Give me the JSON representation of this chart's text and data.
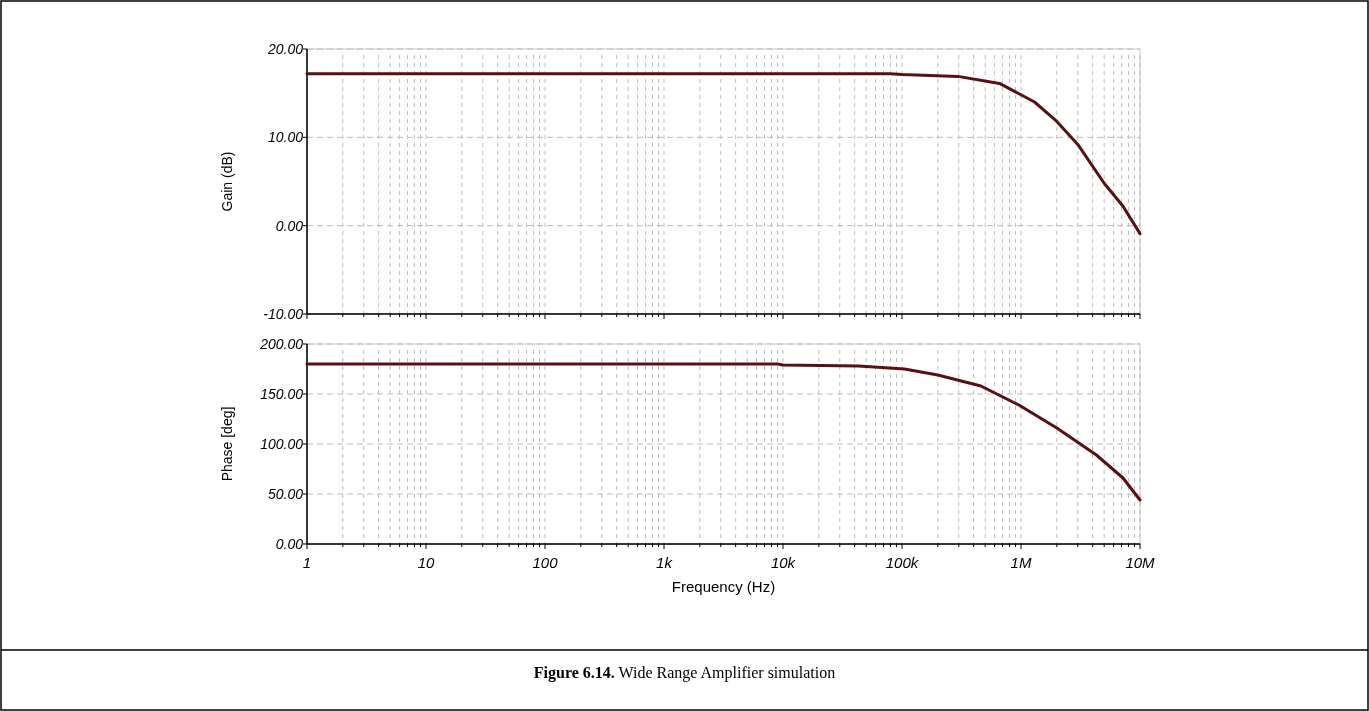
{
  "chart_data": [
    {
      "type": "line",
      "ylabel": "Gain (dB)",
      "log": "x",
      "grid": true,
      "tick_labels": "y",
      "marker": "none",
      "line_style": "solid",
      "xlim": [
        1,
        10000000
      ],
      "ylim": [
        -10,
        20
      ],
      "xticks": [
        1,
        {
          "value": 2,
          "label": null
        },
        {
          "value": 3,
          "label": null
        },
        {
          "value": 4,
          "label": null
        },
        {
          "value": 5,
          "label": null
        },
        {
          "value": 6,
          "label": null
        },
        {
          "value": 7,
          "label": null
        },
        {
          "value": 8,
          "label": null
        },
        {
          "value": 9,
          "label": null
        },
        10,
        {
          "value": 20,
          "label": null
        },
        {
          "value": 30,
          "label": null
        },
        {
          "value": 40,
          "label": null
        },
        {
          "value": 50,
          "label": null
        },
        {
          "value": 60,
          "label": null
        },
        {
          "value": 70,
          "label": null
        },
        {
          "value": 80,
          "label": null
        },
        {
          "value": 90,
          "label": null
        },
        100,
        {
          "value": 200,
          "label": null
        },
        {
          "value": 300,
          "label": null
        },
        {
          "value": 400,
          "label": null
        },
        {
          "value": 500,
          "label": null
        },
        {
          "value": 600,
          "label": null
        },
        {
          "value": 700,
          "label": null
        },
        {
          "value": 800,
          "label": null
        },
        {
          "value": 900,
          "label": null
        },
        1000,
        {
          "value": 2000,
          "label": null
        },
        {
          "value": 3000,
          "label": null
        },
        {
          "value": 4000,
          "label": null
        },
        {
          "value": 5000,
          "label": null
        },
        {
          "value": 6000,
          "label": null
        },
        {
          "value": 7000,
          "label": null
        },
        {
          "value": 8000,
          "label": null
        },
        {
          "value": 9000,
          "label": null
        },
        10000,
        {
          "value": 20000,
          "label": null
        },
        {
          "value": 30000,
          "label": null
        },
        {
          "value": 40000,
          "label": null
        },
        {
          "value": 50000,
          "label": null
        },
        {
          "value": 60000,
          "label": null
        },
        {
          "value": 70000,
          "label": null
        },
        {
          "value": 80000,
          "label": null
        },
        {
          "value": 90000,
          "label": null
        },
        100000,
        {
          "value": 200000,
          "label": null
        },
        {
          "value": 300000,
          "label": null
        },
        {
          "value": 400000,
          "label": null
        },
        {
          "value": 500000,
          "label": null
        },
        {
          "value": 600000,
          "label": null
        },
        {
          "value": 700000,
          "label": null
        },
        {
          "value": 800000,
          "label": null
        },
        {
          "value": 900000,
          "label": null
        },
        1000000,
        {
          "value": 2000000,
          "label": null
        },
        {
          "value": 3000000,
          "label": null
        },
        {
          "value": 4000000,
          "label": null
        },
        {
          "value": 5000000,
          "label": null
        },
        {
          "value": 6000000,
          "label": null
        },
        {
          "value": 7000000,
          "label": null
        },
        {
          "value": 8000000,
          "label": null
        },
        {
          "value": 9000000,
          "label": null
        },
        10000000
      ],
      "yticks": [
        {
          "value": -10,
          "label": "-10.00"
        },
        {
          "value": 0,
          "label": "0.00"
        },
        {
          "value": 10,
          "label": "10.00"
        },
        {
          "value": 20,
          "label": "20.00"
        }
      ],
      "x": [
        1,
        10,
        100,
        1000,
        10000,
        80000,
        100000,
        295000,
        660000,
        1300000,
        2000000,
        3000000,
        5000000,
        7200000,
        10000000
      ],
      "series": [
        {
          "color": "#5a1010",
          "values": [
            17.2,
            17.2,
            17.2,
            17.2,
            17.2,
            17.2,
            17.1,
            16.9,
            16.1,
            14.0,
            11.8,
            9.2,
            4.8,
            2.2,
            -0.9
          ]
        }
      ]
    },
    {
      "type": "line",
      "xlabel": "Frequency (Hz)",
      "ylabel": "Phase [deg]",
      "log": "x",
      "grid": true,
      "marker": "none",
      "line_style": "solid",
      "xlim": [
        1,
        10000000
      ],
      "ylim": [
        0,
        200
      ],
      "xticks": [
        1,
        {
          "value": 2,
          "label": null
        },
        {
          "value": 3,
          "label": null
        },
        {
          "value": 4,
          "label": null
        },
        {
          "value": 5,
          "label": null
        },
        {
          "value": 6,
          "label": null
        },
        {
          "value": 7,
          "label": null
        },
        {
          "value": 8,
          "label": null
        },
        {
          "value": 9,
          "label": null
        },
        10,
        {
          "value": 20,
          "label": null
        },
        {
          "value": 30,
          "label": null
        },
        {
          "value": 40,
          "label": null
        },
        {
          "value": 50,
          "label": null
        },
        {
          "value": 60,
          "label": null
        },
        {
          "value": 70,
          "label": null
        },
        {
          "value": 80,
          "label": null
        },
        {
          "value": 90,
          "label": null
        },
        100,
        {
          "value": 200,
          "label": null
        },
        {
          "value": 300,
          "label": null
        },
        {
          "value": 400,
          "label": null
        },
        {
          "value": 500,
          "label": null
        },
        {
          "value": 600,
          "label": null
        },
        {
          "value": 700,
          "label": null
        },
        {
          "value": 800,
          "label": null
        },
        {
          "value": 900,
          "label": null
        },
        {
          "value": 1000,
          "label": "1k"
        },
        {
          "value": 2000,
          "label": null
        },
        {
          "value": 3000,
          "label": null
        },
        {
          "value": 4000,
          "label": null
        },
        {
          "value": 5000,
          "label": null
        },
        {
          "value": 6000,
          "label": null
        },
        {
          "value": 7000,
          "label": null
        },
        {
          "value": 8000,
          "label": null
        },
        {
          "value": 9000,
          "label": null
        },
        {
          "value": 10000,
          "label": "10k"
        },
        {
          "value": 20000,
          "label": null
        },
        {
          "value": 30000,
          "label": null
        },
        {
          "value": 40000,
          "label": null
        },
        {
          "value": 50000,
          "label": null
        },
        {
          "value": 60000,
          "label": null
        },
        {
          "value": 70000,
          "label": null
        },
        {
          "value": 80000,
          "label": null
        },
        {
          "value": 90000,
          "label": null
        },
        {
          "value": 100000,
          "label": "100k"
        },
        {
          "value": 200000,
          "label": null
        },
        {
          "value": 300000,
          "label": null
        },
        {
          "value": 400000,
          "label": null
        },
        {
          "value": 500000,
          "label": null
        },
        {
          "value": 600000,
          "label": null
        },
        {
          "value": 700000,
          "label": null
        },
        {
          "value": 800000,
          "label": null
        },
        {
          "value": 900000,
          "label": null
        },
        {
          "value": 1000000,
          "label": "1M"
        },
        {
          "value": 2000000,
          "label": null
        },
        {
          "value": 3000000,
          "label": null
        },
        {
          "value": 4000000,
          "label": null
        },
        {
          "value": 5000000,
          "label": null
        },
        {
          "value": 6000000,
          "label": null
        },
        {
          "value": 7000000,
          "label": null
        },
        {
          "value": 8000000,
          "label": null
        },
        {
          "value": 9000000,
          "label": null
        },
        {
          "value": 10000000,
          "label": "10M"
        }
      ],
      "yticks": [
        {
          "value": 0,
          "label": "0.00"
        },
        {
          "value": 50,
          "label": "50.00"
        },
        {
          "value": 100,
          "label": "100.00"
        },
        {
          "value": 150,
          "label": "150.00"
        },
        {
          "value": 200,
          "label": "200.00"
        }
      ],
      "x": [
        1,
        10,
        100,
        1000,
        9000,
        10000,
        43000,
        105000,
        200000,
        460000,
        960000,
        2000000,
        4300000,
        7200000,
        10000000
      ],
      "series": [
        {
          "color": "#5a1010",
          "values": [
            180,
            180,
            180,
            180,
            180,
            179,
            178,
            175,
            169,
            158,
            139,
            116,
            89,
            66,
            44
          ]
        }
      ],
      "annotations": [
        "Figure 6.14. Wide Range Amplifier simulation"
      ]
    }
  ]
}
